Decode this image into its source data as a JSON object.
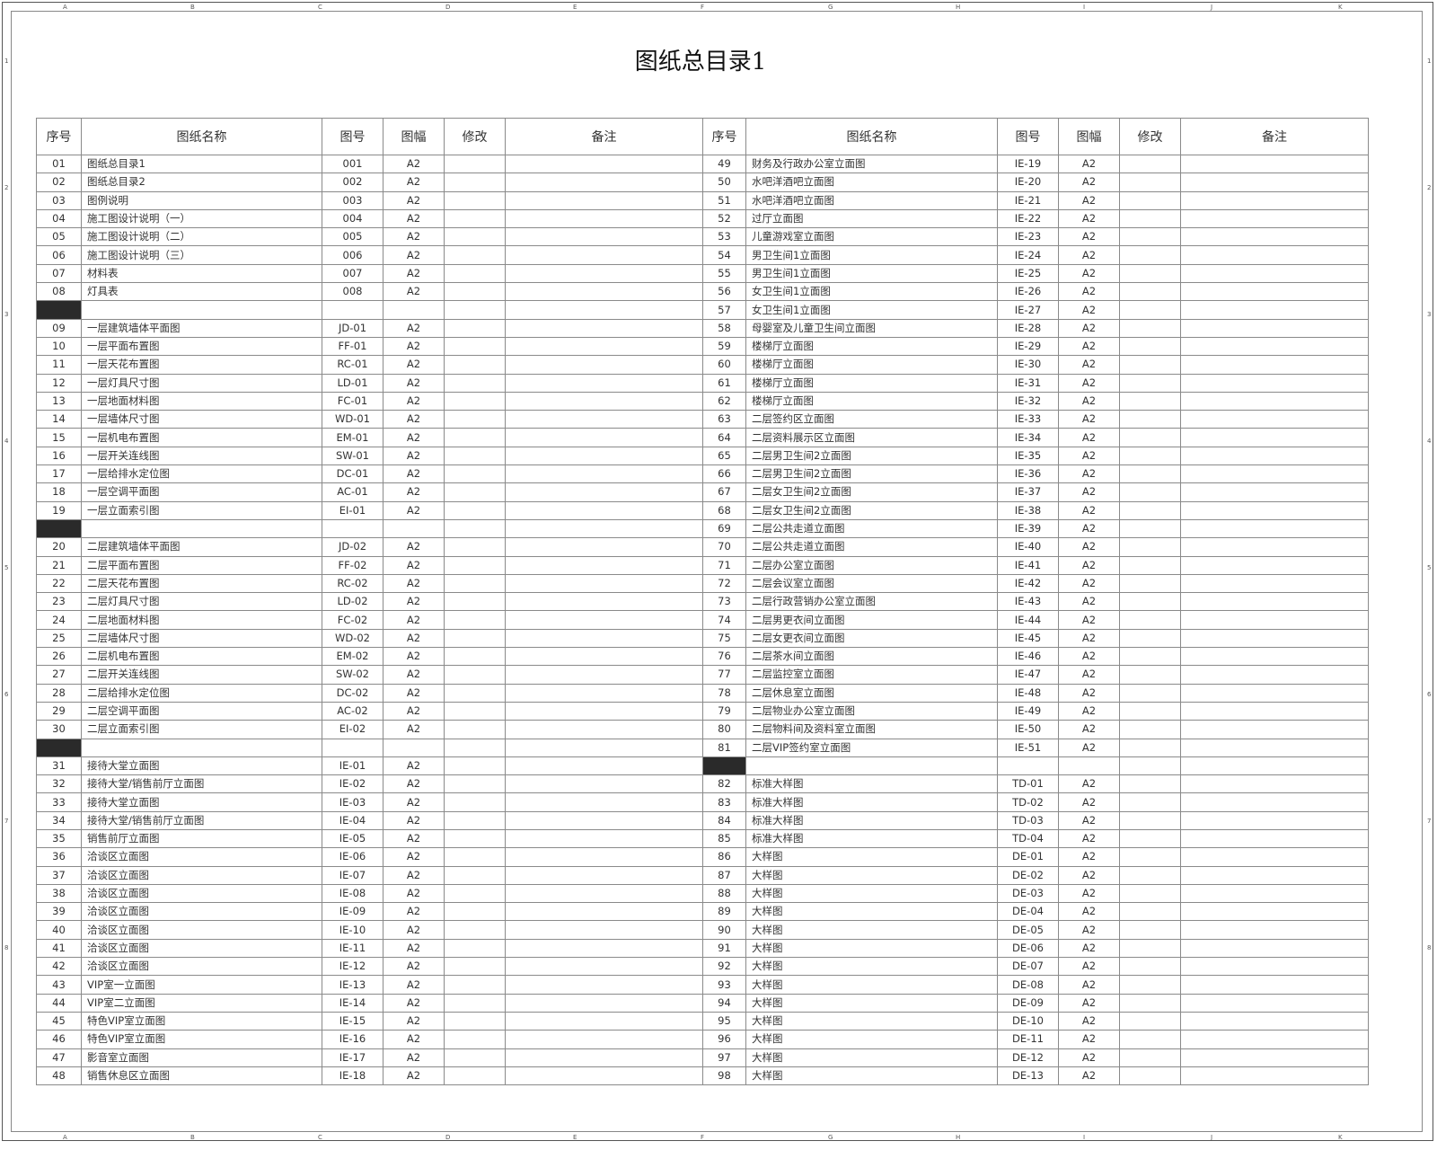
{
  "title": "图纸总目录1",
  "headers": [
    "序号",
    "图纸名称",
    "图号",
    "图幅",
    "修改",
    "备注"
  ],
  "frame_columns": [
    "A",
    "B",
    "C",
    "D",
    "E",
    "F",
    "G",
    "H",
    "I",
    "J",
    "K"
  ],
  "frame_rows": [
    "1",
    "2",
    "3",
    "4",
    "5",
    "6",
    "7",
    "8"
  ],
  "left_rows": [
    [
      "01",
      "图纸总目录1",
      "001",
      "A2"
    ],
    [
      "02",
      "图纸总目录2",
      "002",
      "A2"
    ],
    [
      "03",
      "图例说明",
      "003",
      "A2"
    ],
    [
      "04",
      "施工图设计说明（一）",
      "004",
      "A2"
    ],
    [
      "05",
      "施工图设计说明（二）",
      "005",
      "A2"
    ],
    [
      "06",
      "施工图设计说明（三）",
      "006",
      "A2"
    ],
    [
      "07",
      "材料表",
      "007",
      "A2"
    ],
    [
      "08",
      "灯具表",
      "008",
      "A2"
    ],
    null,
    [
      "09",
      "一层建筑墙体平面图",
      "JD-01",
      "A2"
    ],
    [
      "10",
      "一层平面布置图",
      "FF-01",
      "A2"
    ],
    [
      "11",
      "一层天花布置图",
      "RC-01",
      "A2"
    ],
    [
      "12",
      "一层灯具尺寸图",
      "LD-01",
      "A2"
    ],
    [
      "13",
      "一层地面材料图",
      "FC-01",
      "A2"
    ],
    [
      "14",
      "一层墙体尺寸图",
      "WD-01",
      "A2"
    ],
    [
      "15",
      "一层机电布置图",
      "EM-01",
      "A2"
    ],
    [
      "16",
      "一层开关连线图",
      "SW-01",
      "A2"
    ],
    [
      "17",
      "一层给排水定位图",
      "DC-01",
      "A2"
    ],
    [
      "18",
      "一层空调平面图",
      "AC-01",
      "A2"
    ],
    [
      "19",
      "一层立面索引图",
      "EI-01",
      "A2"
    ],
    null,
    [
      "20",
      "二层建筑墙体平面图",
      "JD-02",
      "A2"
    ],
    [
      "21",
      "二层平面布置图",
      "FF-02",
      "A2"
    ],
    [
      "22",
      "二层天花布置图",
      "RC-02",
      "A2"
    ],
    [
      "23",
      "二层灯具尺寸图",
      "LD-02",
      "A2"
    ],
    [
      "24",
      "二层地面材料图",
      "FC-02",
      "A2"
    ],
    [
      "25",
      "二层墙体尺寸图",
      "WD-02",
      "A2"
    ],
    [
      "26",
      "二层机电布置图",
      "EM-02",
      "A2"
    ],
    [
      "27",
      "二层开关连线图",
      "SW-02",
      "A2"
    ],
    [
      "28",
      "二层给排水定位图",
      "DC-02",
      "A2"
    ],
    [
      "29",
      "二层空调平面图",
      "AC-02",
      "A2"
    ],
    [
      "30",
      "二层立面索引图",
      "EI-02",
      "A2"
    ],
    null,
    [
      "31",
      "接待大堂立面图",
      "IE-01",
      "A2"
    ],
    [
      "32",
      "接待大堂/销售前厅立面图",
      "IE-02",
      "A2"
    ],
    [
      "33",
      "接待大堂立面图",
      "IE-03",
      "A2"
    ],
    [
      "34",
      "接待大堂/销售前厅立面图",
      "IE-04",
      "A2"
    ],
    [
      "35",
      "销售前厅立面图",
      "IE-05",
      "A2"
    ],
    [
      "36",
      "洽谈区立面图",
      "IE-06",
      "A2"
    ],
    [
      "37",
      "洽谈区立面图",
      "IE-07",
      "A2"
    ],
    [
      "38",
      "洽谈区立面图",
      "IE-08",
      "A2"
    ],
    [
      "39",
      "洽谈区立面图",
      "IE-09",
      "A2"
    ],
    [
      "40",
      "洽谈区立面图",
      "IE-10",
      "A2"
    ],
    [
      "41",
      "洽谈区立面图",
      "IE-11",
      "A2"
    ],
    [
      "42",
      "洽谈区立面图",
      "IE-12",
      "A2"
    ],
    [
      "43",
      "VIP室一立面图",
      "IE-13",
      "A2"
    ],
    [
      "44",
      "VIP室二立面图",
      "IE-14",
      "A2"
    ],
    [
      "45",
      "特色VIP室立面图",
      "IE-15",
      "A2"
    ],
    [
      "46",
      "特色VIP室立面图",
      "IE-16",
      "A2"
    ],
    [
      "47",
      "影音室立面图",
      "IE-17",
      "A2"
    ],
    [
      "48",
      "销售休息区立面图",
      "IE-18",
      "A2"
    ]
  ],
  "right_rows": [
    [
      "49",
      "财务及行政办公室立面图",
      "IE-19",
      "A2"
    ],
    [
      "50",
      "水吧洋酒吧立面图",
      "IE-20",
      "A2"
    ],
    [
      "51",
      "水吧洋酒吧立面图",
      "IE-21",
      "A2"
    ],
    [
      "52",
      "过厅立面图",
      "IE-22",
      "A2"
    ],
    [
      "53",
      "儿童游戏室立面图",
      "IE-23",
      "A2"
    ],
    [
      "54",
      "男卫生间1立面图",
      "IE-24",
      "A2"
    ],
    [
      "55",
      "男卫生间1立面图",
      "IE-25",
      "A2"
    ],
    [
      "56",
      "女卫生间1立面图",
      "IE-26",
      "A2"
    ],
    [
      "57",
      "女卫生间1立面图",
      "IE-27",
      "A2"
    ],
    [
      "58",
      "母婴室及儿童卫生间立面图",
      "IE-28",
      "A2"
    ],
    [
      "59",
      "楼梯厅立面图",
      "IE-29",
      "A2"
    ],
    [
      "60",
      "楼梯厅立面图",
      "IE-30",
      "A2"
    ],
    [
      "61",
      "楼梯厅立面图",
      "IE-31",
      "A2"
    ],
    [
      "62",
      "楼梯厅立面图",
      "IE-32",
      "A2"
    ],
    [
      "63",
      "二层签约区立面图",
      "IE-33",
      "A2"
    ],
    [
      "64",
      "二层资料展示区立面图",
      "IE-34",
      "A2"
    ],
    [
      "65",
      "二层男卫生间2立面图",
      "IE-35",
      "A2"
    ],
    [
      "66",
      "二层男卫生间2立面图",
      "IE-36",
      "A2"
    ],
    [
      "67",
      "二层女卫生间2立面图",
      "IE-37",
      "A2"
    ],
    [
      "68",
      "二层女卫生间2立面图",
      "IE-38",
      "A2"
    ],
    [
      "69",
      "二层公共走道立面图",
      "IE-39",
      "A2"
    ],
    [
      "70",
      "二层公共走道立面图",
      "IE-40",
      "A2"
    ],
    [
      "71",
      "二层办公室立面图",
      "IE-41",
      "A2"
    ],
    [
      "72",
      "二层会议室立面图",
      "IE-42",
      "A2"
    ],
    [
      "73",
      "二层行政营销办公室立面图",
      "IE-43",
      "A2"
    ],
    [
      "74",
      "二层男更衣间立面图",
      "IE-44",
      "A2"
    ],
    [
      "75",
      "二层女更衣间立面图",
      "IE-45",
      "A2"
    ],
    [
      "76",
      "二层茶水间立面图",
      "IE-46",
      "A2"
    ],
    [
      "77",
      "二层监控室立面图",
      "IE-47",
      "A2"
    ],
    [
      "78",
      "二层休息室立面图",
      "IE-48",
      "A2"
    ],
    [
      "79",
      "二层物业办公室立面图",
      "IE-49",
      "A2"
    ],
    [
      "80",
      "二层物料间及资料室立面图",
      "IE-50",
      "A2"
    ],
    [
      "81",
      "二层VIP签约室立面图",
      "IE-51",
      "A2"
    ],
    null,
    [
      "82",
      "标准大样图",
      "TD-01",
      "A2"
    ],
    [
      "83",
      "标准大样图",
      "TD-02",
      "A2"
    ],
    [
      "84",
      "标准大样图",
      "TD-03",
      "A2"
    ],
    [
      "85",
      "标准大样图",
      "TD-04",
      "A2"
    ],
    [
      "86",
      "大样图",
      "DE-01",
      "A2"
    ],
    [
      "87",
      "大样图",
      "DE-02",
      "A2"
    ],
    [
      "88",
      "大样图",
      "DE-03",
      "A2"
    ],
    [
      "89",
      "大样图",
      "DE-04",
      "A2"
    ],
    [
      "90",
      "大样图",
      "DE-05",
      "A2"
    ],
    [
      "91",
      "大样图",
      "DE-06",
      "A2"
    ],
    [
      "92",
      "大样图",
      "DE-07",
      "A2"
    ],
    [
      "93",
      "大样图",
      "DE-08",
      "A2"
    ],
    [
      "94",
      "大样图",
      "DE-09",
      "A2"
    ],
    [
      "95",
      "大样图",
      "DE-10",
      "A2"
    ],
    [
      "96",
      "大样图",
      "DE-11",
      "A2"
    ],
    [
      "97",
      "大样图",
      "DE-12",
      "A2"
    ],
    [
      "98",
      "大样图",
      "DE-13",
      "A2"
    ]
  ]
}
